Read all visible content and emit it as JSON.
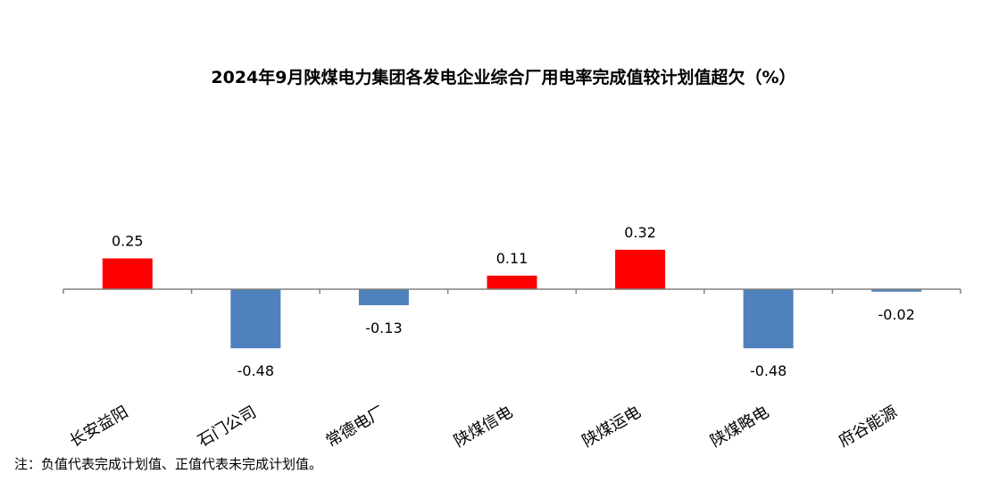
{
  "chart_data": {
    "type": "bar",
    "title": "2024年9月陕煤电力集团各发电企业综合厂用电率完成值较计划值超欠（%）",
    "categories": [
      "长安益阳",
      "石门公司",
      "常德电厂",
      "陕煤信电",
      "陕煤运电",
      "陕煤略电",
      "府谷能源"
    ],
    "values": [
      0.25,
      -0.48,
      -0.13,
      0.11,
      0.32,
      -0.48,
      -0.02
    ],
    "value_labels": [
      "0.25",
      "-0.48",
      "-0.13",
      "0.11",
      "0.32",
      "-0.48",
      "-0.02"
    ],
    "ylim": [
      -0.55,
      0.55
    ],
    "grid": false,
    "legend": "none",
    "colors": {
      "positive": "#ff0000",
      "negative": "#4f81bd",
      "axis": "#808080"
    }
  },
  "footnote": "注：负值代表完成计划值、正值代表未完成计划值。"
}
